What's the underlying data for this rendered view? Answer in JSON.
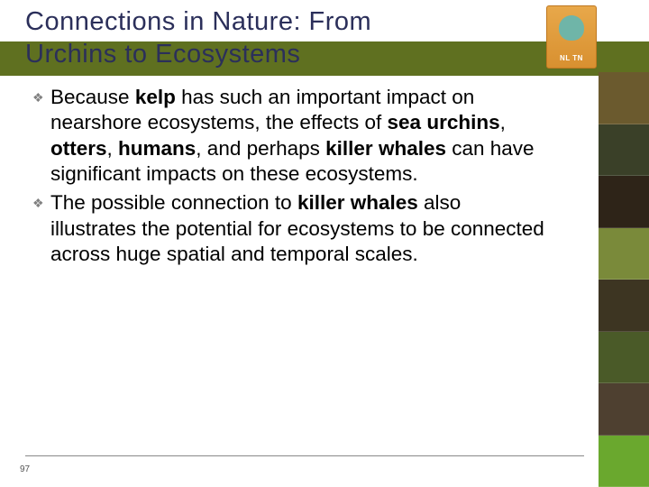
{
  "title_line1": "Connections in Nature: From",
  "title_line2": "Urchins to Ecosystems",
  "logo_label": "NL TN",
  "bullets": [
    {
      "segments": [
        {
          "t": "Because ",
          "b": false
        },
        {
          "t": "kelp",
          "b": true
        },
        {
          "t": " has such an important impact on nearshore ecosystems, the effects of ",
          "b": false
        },
        {
          "t": "sea urchins",
          "b": true
        },
        {
          "t": ", ",
          "b": false
        },
        {
          "t": "otters",
          "b": true
        },
        {
          "t": ", ",
          "b": false
        },
        {
          "t": "humans",
          "b": true
        },
        {
          "t": ", and perhaps ",
          "b": false
        },
        {
          "t": "killer whales",
          "b": true
        },
        {
          "t": " can have significant impacts on these ecosystems.",
          "b": false
        }
      ]
    },
    {
      "segments": [
        {
          "t": "The possible connection to ",
          "b": false
        },
        {
          "t": "killer whales",
          "b": true
        },
        {
          "t": " also illustrates the potential for ecosystems to be connected across huge spatial and temporal scales.",
          "b": false
        }
      ]
    }
  ],
  "thumb_colors": [
    "#6b5a2e",
    "#3a4028",
    "#2e2418",
    "#7a8a3a",
    "#3d3522",
    "#4a5a28",
    "#4e4030",
    "#6aa82e"
  ],
  "page_number": "97",
  "colors": {
    "header_band": "#5f7020",
    "title_color": "#2b2f5a"
  }
}
